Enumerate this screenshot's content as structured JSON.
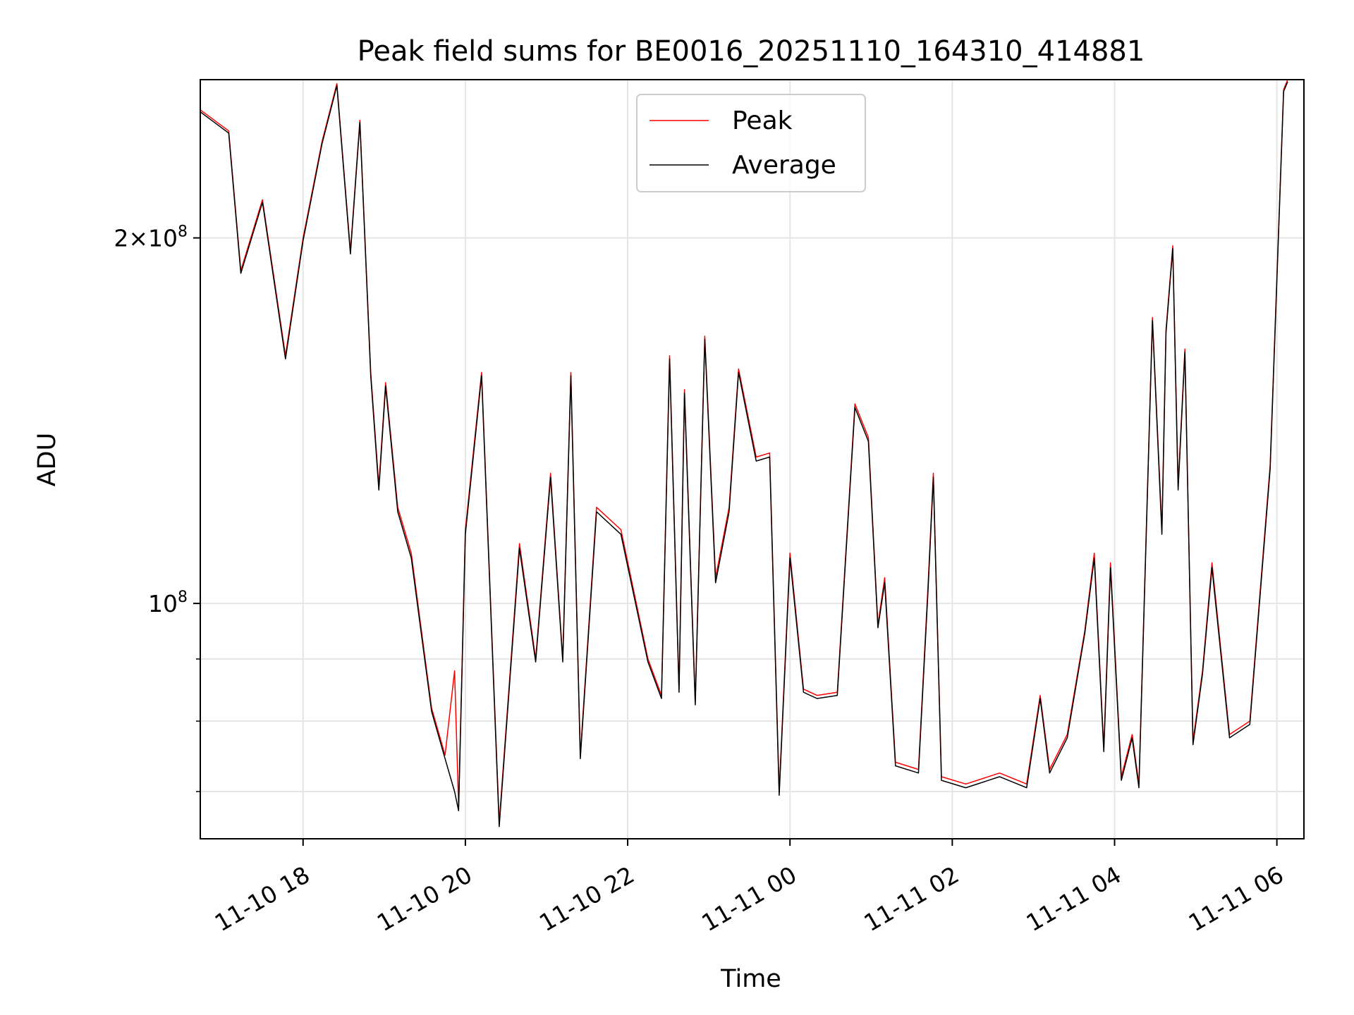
{
  "chart_data": {
    "type": "line",
    "title": "Peak field sums for BE0016_20251110_164310_414881",
    "xlabel": "Time",
    "ylabel": "ADU",
    "yscale": "log",
    "ylim": [
      64000000,
      270000000
    ],
    "xlim": [
      "2025-11-10 16:44",
      "2025-11-11 06:20"
    ],
    "grid": true,
    "legend_position": "upper center",
    "x_ticks": [
      {
        "label": "11-10 18",
        "time": "2025-11-10 18:00"
      },
      {
        "label": "11-10 20",
        "time": "2025-11-10 20:00"
      },
      {
        "label": "11-10 22",
        "time": "2025-11-10 22:00"
      },
      {
        "label": "11-11 00",
        "time": "2025-11-11 00:00"
      },
      {
        "label": "11-11 02",
        "time": "2025-11-11 02:00"
      },
      {
        "label": "11-11 04",
        "time": "2025-11-11 04:00"
      },
      {
        "label": "11-11 06",
        "time": "2025-11-11 06:00"
      }
    ],
    "y_ticks_major": [
      {
        "base": "2",
        "exp": "8",
        "value": 200000000
      },
      {
        "base": "",
        "exp": "8",
        "value": 100000000
      }
    ],
    "y_ticks_minor": [
      60000000,
      70000000,
      80000000,
      90000000
    ],
    "series": [
      {
        "name": "Peak",
        "color": "#ff0000",
        "points": [
          [
            "2025-11-10 16:44",
            255000000
          ],
          [
            "2025-11-10 17:05",
            245000000
          ],
          [
            "2025-11-10 17:14",
            188000000
          ],
          [
            "2025-11-10 17:30",
            215000000
          ],
          [
            "2025-11-10 17:47",
            160000000
          ],
          [
            "2025-11-10 18:00",
            200000000
          ],
          [
            "2025-11-10 18:14",
            240000000
          ],
          [
            "2025-11-10 18:25",
            268000000
          ],
          [
            "2025-11-10 18:35",
            195000000
          ],
          [
            "2025-11-10 18:42",
            250000000
          ],
          [
            "2025-11-10 18:50",
            155000000
          ],
          [
            "2025-11-10 18:56",
            125000000
          ],
          [
            "2025-11-10 19:01",
            152000000
          ],
          [
            "2025-11-10 19:10",
            120000000
          ],
          [
            "2025-11-10 19:20",
            110000000
          ],
          [
            "2025-11-10 19:35",
            82000000
          ],
          [
            "2025-11-10 19:45",
            75000000
          ],
          [
            "2025-11-10 19:52",
            88000000
          ],
          [
            "2025-11-10 19:55",
            68000000
          ],
          [
            "2025-11-10 20:00",
            115000000
          ],
          [
            "2025-11-10 20:12",
            155000000
          ],
          [
            "2025-11-10 20:25",
            66000000
          ],
          [
            "2025-11-10 20:40",
            112000000
          ],
          [
            "2025-11-10 20:52",
            90000000
          ],
          [
            "2025-11-10 21:03",
            128000000
          ],
          [
            "2025-11-10 21:12",
            90000000
          ],
          [
            "2025-11-10 21:18",
            155000000
          ],
          [
            "2025-11-10 21:25",
            75000000
          ],
          [
            "2025-11-10 21:37",
            120000000
          ],
          [
            "2025-11-10 21:55",
            115000000
          ],
          [
            "2025-11-10 22:15",
            90000000
          ],
          [
            "2025-11-10 22:25",
            84000000
          ],
          [
            "2025-11-10 22:31",
            160000000
          ],
          [
            "2025-11-10 22:38",
            85000000
          ],
          [
            "2025-11-10 22:42",
            150000000
          ],
          [
            "2025-11-10 22:50",
            83000000
          ],
          [
            "2025-11-10 22:57",
            166000000
          ],
          [
            "2025-11-10 23:05",
            105000000
          ],
          [
            "2025-11-10 23:15",
            120000000
          ],
          [
            "2025-11-10 23:22",
            156000000
          ],
          [
            "2025-11-10 23:35",
            132000000
          ],
          [
            "2025-11-10 23:45",
            133000000
          ],
          [
            "2025-11-10 23:52",
            70000000
          ],
          [
            "2025-11-11 00:00",
            110000000
          ],
          [
            "2025-11-11 00:10",
            85000000
          ],
          [
            "2025-11-11 00:20",
            84000000
          ],
          [
            "2025-11-11 00:35",
            84500000
          ],
          [
            "2025-11-11 00:48",
            146000000
          ],
          [
            "2025-11-11 00:58",
            137000000
          ],
          [
            "2025-11-11 01:05",
            96000000
          ],
          [
            "2025-11-11 01:10",
            105000000
          ],
          [
            "2025-11-11 01:18",
            74000000
          ],
          [
            "2025-11-11 01:35",
            73000000
          ],
          [
            "2025-11-11 01:42",
            103000000
          ],
          [
            "2025-11-11 01:46",
            128000000
          ],
          [
            "2025-11-11 01:52",
            72000000
          ],
          [
            "2025-11-11 02:10",
            71000000
          ],
          [
            "2025-11-11 02:35",
            72500000
          ],
          [
            "2025-11-11 02:55",
            71000000
          ],
          [
            "2025-11-11 03:05",
            84000000
          ],
          [
            "2025-11-11 03:12",
            73000000
          ],
          [
            "2025-11-11 03:25",
            78000000
          ],
          [
            "2025-11-11 03:38",
            95000000
          ],
          [
            "2025-11-11 03:45",
            110000000
          ],
          [
            "2025-11-11 03:52",
            76000000
          ],
          [
            "2025-11-11 03:57",
            108000000
          ],
          [
            "2025-11-11 04:05",
            72000000
          ],
          [
            "2025-11-11 04:13",
            78000000
          ],
          [
            "2025-11-11 04:18",
            71000000
          ],
          [
            "2025-11-11 04:28",
            172000000
          ],
          [
            "2025-11-11 04:35",
            115000000
          ],
          [
            "2025-11-11 04:38",
            168000000
          ],
          [
            "2025-11-11 04:43",
            197000000
          ],
          [
            "2025-11-11 04:47",
            125000000
          ],
          [
            "2025-11-11 04:52",
            162000000
          ],
          [
            "2025-11-11 04:58",
            77000000
          ],
          [
            "2025-11-11 05:05",
            88000000
          ],
          [
            "2025-11-11 05:12",
            108000000
          ],
          [
            "2025-11-11 05:25",
            78000000
          ],
          [
            "2025-11-11 05:40",
            80000000
          ],
          [
            "2025-11-11 05:55",
            130000000
          ],
          [
            "2025-11-11 06:05",
            265000000
          ],
          [
            "2025-11-11 06:08",
            270000000
          ]
        ]
      },
      {
        "name": "Average",
        "color": "#000000",
        "points": [
          [
            "2025-11-10 16:44",
            254000000
          ],
          [
            "2025-11-10 17:05",
            244000000
          ],
          [
            "2025-11-10 17:14",
            187000000
          ],
          [
            "2025-11-10 17:30",
            214000000
          ],
          [
            "2025-11-10 17:47",
            159000000
          ],
          [
            "2025-11-10 18:00",
            199000000
          ],
          [
            "2025-11-10 18:14",
            239000000
          ],
          [
            "2025-11-10 18:25",
            267000000
          ],
          [
            "2025-11-10 18:35",
            194000000
          ],
          [
            "2025-11-10 18:42",
            249000000
          ],
          [
            "2025-11-10 18:50",
            154000000
          ],
          [
            "2025-11-10 18:56",
            124000000
          ],
          [
            "2025-11-10 19:01",
            151000000
          ],
          [
            "2025-11-10 19:10",
            119000000
          ],
          [
            "2025-11-10 19:20",
            109000000
          ],
          [
            "2025-11-10 19:35",
            81500000
          ],
          [
            "2025-11-10 19:45",
            74500000
          ],
          [
            "2025-11-10 19:52",
            70000000
          ],
          [
            "2025-11-10 19:55",
            67500000
          ],
          [
            "2025-11-10 20:00",
            114000000
          ],
          [
            "2025-11-10 20:12",
            154000000
          ],
          [
            "2025-11-10 20:25",
            65500000
          ],
          [
            "2025-11-10 20:40",
            111000000
          ],
          [
            "2025-11-10 20:52",
            89500000
          ],
          [
            "2025-11-10 21:03",
            127000000
          ],
          [
            "2025-11-10 21:12",
            89500000
          ],
          [
            "2025-11-10 21:18",
            154000000
          ],
          [
            "2025-11-10 21:25",
            74500000
          ],
          [
            "2025-11-10 21:37",
            119000000
          ],
          [
            "2025-11-10 21:55",
            114000000
          ],
          [
            "2025-11-10 22:15",
            89500000
          ],
          [
            "2025-11-10 22:25",
            83500000
          ],
          [
            "2025-11-10 22:31",
            159000000
          ],
          [
            "2025-11-10 22:38",
            84500000
          ],
          [
            "2025-11-10 22:42",
            149000000
          ],
          [
            "2025-11-10 22:50",
            82500000
          ],
          [
            "2025-11-10 22:57",
            165000000
          ],
          [
            "2025-11-10 23:05",
            104000000
          ],
          [
            "2025-11-10 23:15",
            119000000
          ],
          [
            "2025-11-10 23:22",
            155000000
          ],
          [
            "2025-11-10 23:35",
            131000000
          ],
          [
            "2025-11-10 23:45",
            132000000
          ],
          [
            "2025-11-10 23:52",
            69500000
          ],
          [
            "2025-11-11 00:00",
            109000000
          ],
          [
            "2025-11-11 00:10",
            84500000
          ],
          [
            "2025-11-11 00:20",
            83500000
          ],
          [
            "2025-11-11 00:35",
            84000000
          ],
          [
            "2025-11-11 00:48",
            145000000
          ],
          [
            "2025-11-11 00:58",
            136000000
          ],
          [
            "2025-11-11 01:05",
            95500000
          ],
          [
            "2025-11-11 01:10",
            104000000
          ],
          [
            "2025-11-11 01:18",
            73500000
          ],
          [
            "2025-11-11 01:35",
            72500000
          ],
          [
            "2025-11-11 01:42",
            102000000
          ],
          [
            "2025-11-11 01:46",
            127000000
          ],
          [
            "2025-11-11 01:52",
            71500000
          ],
          [
            "2025-11-11 02:10",
            70500000
          ],
          [
            "2025-11-11 02:35",
            72000000
          ],
          [
            "2025-11-11 02:55",
            70500000
          ],
          [
            "2025-11-11 03:05",
            83500000
          ],
          [
            "2025-11-11 03:12",
            72500000
          ],
          [
            "2025-11-11 03:25",
            77500000
          ],
          [
            "2025-11-11 03:38",
            94500000
          ],
          [
            "2025-11-11 03:45",
            109000000
          ],
          [
            "2025-11-11 03:52",
            75500000
          ],
          [
            "2025-11-11 03:57",
            107000000
          ],
          [
            "2025-11-11 04:05",
            71500000
          ],
          [
            "2025-11-11 04:13",
            77500000
          ],
          [
            "2025-11-11 04:18",
            70500000
          ],
          [
            "2025-11-11 04:28",
            171000000
          ],
          [
            "2025-11-11 04:35",
            114000000
          ],
          [
            "2025-11-11 04:38",
            167000000
          ],
          [
            "2025-11-11 04:43",
            196000000
          ],
          [
            "2025-11-11 04:47",
            124000000
          ],
          [
            "2025-11-11 04:52",
            161000000
          ],
          [
            "2025-11-11 04:58",
            76500000
          ],
          [
            "2025-11-11 05:05",
            87500000
          ],
          [
            "2025-11-11 05:12",
            107000000
          ],
          [
            "2025-11-11 05:25",
            77500000
          ],
          [
            "2025-11-11 05:40",
            79500000
          ],
          [
            "2025-11-11 05:55",
            129000000
          ],
          [
            "2025-11-11 06:05",
            264000000
          ],
          [
            "2025-11-11 06:08",
            269000000
          ]
        ]
      }
    ]
  }
}
